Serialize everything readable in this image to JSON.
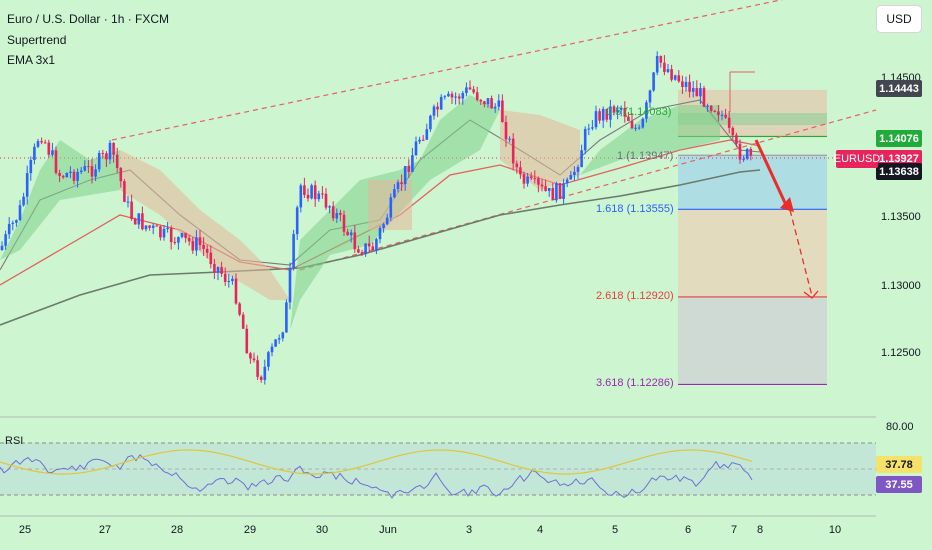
{
  "legend": {
    "symbol": "Euro / U.S. Dollar · 1h · FXCM",
    "indicator1": "Supertrend",
    "indicator2": "EMA 3x1"
  },
  "currency_button": "USD",
  "rsi_label": "RSI",
  "symbol_tag": "EURUSD",
  "price_tags": [
    {
      "value": "1.14443",
      "bg": "#434651",
      "fg": "#ffffff"
    },
    {
      "value": "1.14076",
      "bg": "#22ab3a",
      "fg": "#ffffff"
    },
    {
      "value": "1.13927",
      "bg": "#e8245c",
      "fg": "#ffffff"
    },
    {
      "value": "1.13638",
      "bg": "#131722",
      "fg": "#ffffff"
    }
  ],
  "price_axis": [
    "1.14500",
    "1.13500",
    "1.13000",
    "1.12500"
  ],
  "rsi_axis": {
    "level": "80.00",
    "tag1": "37.78",
    "tag2": "37.55"
  },
  "dates": [
    "25",
    "27",
    "28",
    "29",
    "30",
    "Jun",
    "3",
    "4",
    "5",
    "6",
    "7",
    "8",
    "10"
  ],
  "fib_levels": [
    {
      "text": "0.5 (1.14083)",
      "color": "#22ab3a"
    },
    {
      "text": "1 (1.13947)",
      "color": "#6b6f7a"
    },
    {
      "text": "1.618 (1.13555)",
      "color": "#2962ff"
    },
    {
      "text": "2.618 (1.12920)",
      "color": "#e83e3e"
    },
    {
      "text": "3.618 (1.12286)",
      "color": "#9c27b0"
    }
  ],
  "colors": {
    "background": "#cdf5cf",
    "up": "#2962ff",
    "down": "#e8245c",
    "trend_line": "#e86060",
    "ema": "#6b7a6b"
  },
  "chart_data": {
    "type": "candlestick",
    "symbol": "EURUSD",
    "timeframe": "1h",
    "y_range": [
      1.1205,
      1.1475
    ],
    "x_labels": [
      "25",
      "27",
      "28",
      "29",
      "30",
      "Jun",
      "3",
      "4",
      "5",
      "6",
      "7",
      "8",
      "10"
    ],
    "current_price": 1.13927,
    "fibonacci": [
      1.14083,
      1.13947,
      1.13555,
      1.1292,
      1.12286
    ],
    "rsi": [
      37.78,
      37.55
    ]
  }
}
